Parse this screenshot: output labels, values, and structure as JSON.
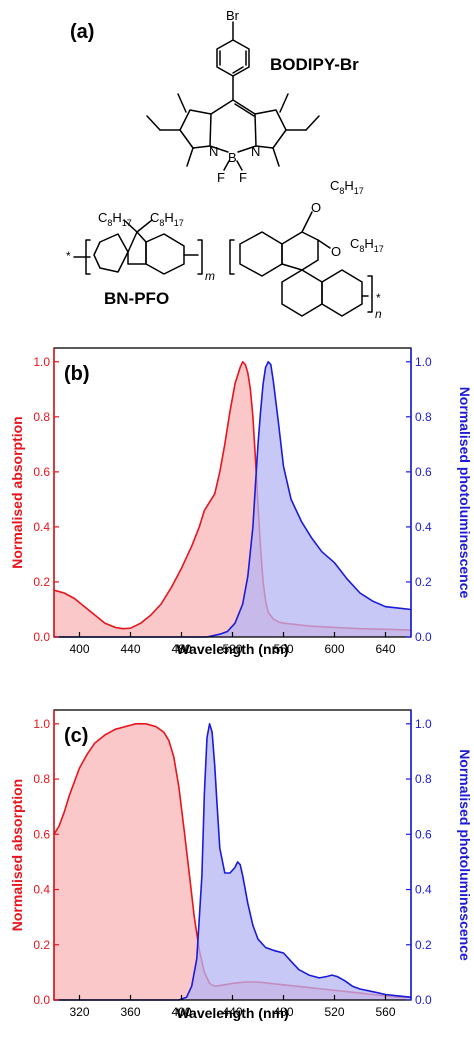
{
  "panel_a": {
    "label": "(a)",
    "molecule1_name": "BODIPY-Br",
    "molecule2_name": "BN-PFO",
    "atoms": {
      "Br": "Br",
      "N": "N",
      "B": "B",
      "F": "F",
      "O": "O",
      "star": "*",
      "C": "C",
      "sub8": "8",
      "H": "H",
      "sub17": "17",
      "m": "m",
      "n": "n"
    }
  },
  "chart_data": [
    {
      "panel_label": "(b)",
      "type": "area",
      "xlabel": "Wavelength (nm)",
      "ylabel_left": "Normalised absorption",
      "ylabel_right": "Normalised photoluminescence",
      "xlim": [
        380,
        660
      ],
      "ylim_left": [
        0,
        1.05
      ],
      "ylim_right": [
        0,
        1.05
      ],
      "xticks": [
        400,
        440,
        480,
        520,
        560,
        600,
        640
      ],
      "yticks": [
        0.0,
        0.2,
        0.4,
        0.6,
        0.8,
        1.0
      ],
      "grid": false,
      "colors": {
        "absorption": "#e8141c",
        "absorption_fill": "#f9b5b8",
        "photoluminescence": "#1b1bd8",
        "photoluminescence_fill": "#b5b5f4"
      },
      "series": [
        {
          "axis": "left",
          "x": [
            380,
            388,
            396,
            404,
            412,
            420,
            428,
            434,
            440,
            448,
            456,
            464,
            472,
            480,
            488,
            494,
            498,
            502,
            506,
            510,
            514,
            518,
            522,
            526,
            528,
            530,
            532,
            534,
            536,
            538,
            540,
            542,
            544,
            546,
            548,
            552,
            556,
            560,
            570,
            580,
            600,
            620,
            640,
            660
          ],
          "values": [
            0.17,
            0.16,
            0.14,
            0.11,
            0.08,
            0.05,
            0.035,
            0.03,
            0.032,
            0.05,
            0.08,
            0.12,
            0.18,
            0.25,
            0.33,
            0.4,
            0.46,
            0.49,
            0.52,
            0.6,
            0.7,
            0.82,
            0.92,
            0.98,
            1.0,
            0.99,
            0.96,
            0.9,
            0.8,
            0.65,
            0.48,
            0.32,
            0.2,
            0.13,
            0.09,
            0.065,
            0.055,
            0.05,
            0.045,
            0.04,
            0.035,
            0.03,
            0.028,
            0.025
          ]
        },
        {
          "axis": "right",
          "x": [
            380,
            500,
            510,
            516,
            522,
            528,
            532,
            536,
            538,
            540,
            542,
            544,
            546,
            548,
            550,
            552,
            556,
            560,
            566,
            574,
            582,
            590,
            600,
            610,
            620,
            630,
            640,
            650,
            660
          ],
          "values": [
            0,
            0,
            0.01,
            0.02,
            0.05,
            0.12,
            0.22,
            0.4,
            0.55,
            0.7,
            0.82,
            0.92,
            0.98,
            1.0,
            0.99,
            0.93,
            0.78,
            0.62,
            0.5,
            0.42,
            0.36,
            0.31,
            0.27,
            0.21,
            0.16,
            0.13,
            0.11,
            0.105,
            0.1
          ]
        }
      ]
    },
    {
      "panel_label": "(c)",
      "type": "area",
      "xlabel": "Wavelength (nm)",
      "ylabel_left": "Normalised absorption",
      "ylabel_right": "Normalised photoluminescence",
      "xlim": [
        300,
        580
      ],
      "ylim_left": [
        0,
        1.05
      ],
      "ylim_right": [
        0,
        1.05
      ],
      "xticks": [
        320,
        360,
        400,
        440,
        480,
        520,
        560
      ],
      "yticks": [
        0.0,
        0.2,
        0.4,
        0.6,
        0.8,
        1.0
      ],
      "grid": false,
      "colors": {
        "absorption": "#e8141c",
        "absorption_fill": "#f9b5b8",
        "photoluminescence": "#1b1bd8",
        "photoluminescence_fill": "#b5b5f4"
      },
      "series": [
        {
          "axis": "left",
          "x": [
            300,
            304,
            308,
            312,
            316,
            320,
            326,
            332,
            340,
            348,
            356,
            364,
            372,
            380,
            386,
            390,
            394,
            398,
            402,
            406,
            410,
            414,
            418,
            422,
            426,
            430,
            440,
            450,
            460,
            470,
            480,
            490,
            500,
            510,
            520,
            530,
            540,
            550,
            560,
            570,
            580
          ],
          "values": [
            0.6,
            0.63,
            0.68,
            0.74,
            0.79,
            0.84,
            0.89,
            0.93,
            0.96,
            0.98,
            0.99,
            1.0,
            1.0,
            0.99,
            0.97,
            0.94,
            0.88,
            0.77,
            0.62,
            0.46,
            0.3,
            0.18,
            0.1,
            0.06,
            0.05,
            0.052,
            0.06,
            0.065,
            0.065,
            0.06,
            0.055,
            0.05,
            0.045,
            0.04,
            0.035,
            0.03,
            0.025,
            0.02,
            0.015,
            0.01,
            0.01
          ]
        },
        {
          "axis": "right",
          "x": [
            300,
            398,
            404,
            408,
            412,
            416,
            418,
            420,
            422,
            424,
            426,
            428,
            430,
            434,
            438,
            442,
            444,
            446,
            448,
            452,
            456,
            460,
            466,
            472,
            476,
            480,
            486,
            492,
            500,
            508,
            514,
            518,
            522,
            528,
            534,
            540,
            550,
            560,
            570,
            580
          ],
          "values": [
            0,
            0,
            0.01,
            0.05,
            0.15,
            0.45,
            0.75,
            0.95,
            1.0,
            0.97,
            0.85,
            0.7,
            0.55,
            0.46,
            0.46,
            0.48,
            0.5,
            0.49,
            0.45,
            0.35,
            0.27,
            0.22,
            0.19,
            0.18,
            0.175,
            0.17,
            0.14,
            0.11,
            0.09,
            0.08,
            0.085,
            0.09,
            0.085,
            0.07,
            0.05,
            0.04,
            0.03,
            0.02,
            0.015,
            0.01
          ]
        }
      ]
    }
  ]
}
